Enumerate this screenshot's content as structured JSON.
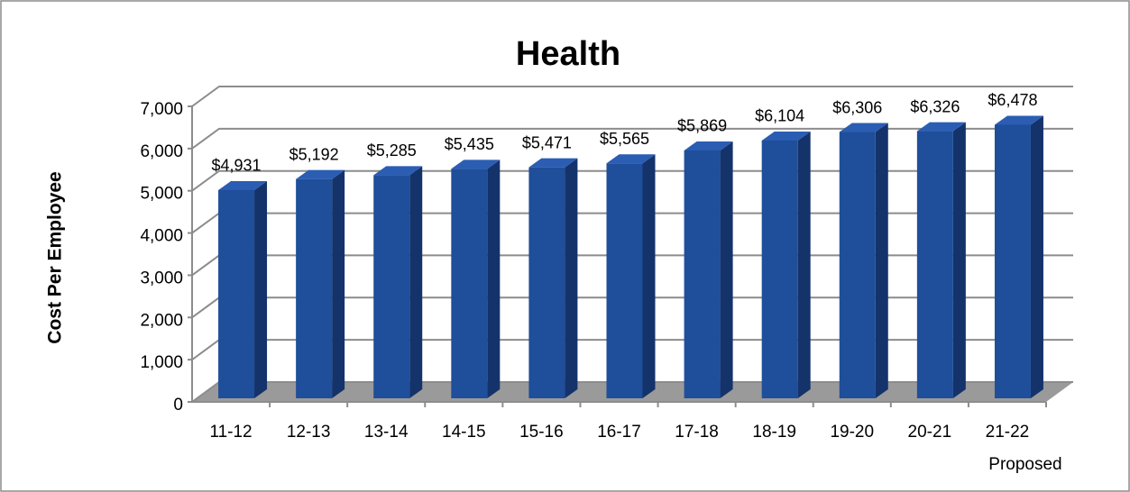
{
  "chart_data": {
    "type": "bar3d",
    "title": "Health",
    "y_label": "Cost  Per Employee",
    "categories": [
      "11-12",
      "12-13",
      "13-14",
      "14-15",
      "15-16",
      "16-17",
      "17-18",
      "18-19",
      "19-20",
      "20-21",
      "21-22\nProposed"
    ],
    "values": [
      4931,
      5192,
      5285,
      5435,
      5471,
      5565,
      5869,
      6104,
      6306,
      6326,
      6478
    ],
    "value_labels": [
      "$4,931",
      "$5,192",
      "$5,285",
      "$5,435",
      "$5,471",
      "$5,565",
      "$5,869",
      "$6,104",
      "$6,306",
      "$6,326",
      "$6,478"
    ],
    "color": "#1f4e9a",
    "ylim": [
      0,
      7000
    ],
    "yticks": [
      0,
      {
        "value": 1000,
        "label": "1,000"
      },
      {
        "value": 2000,
        "label": "2,000"
      },
      {
        "value": 3000,
        "label": "3,000"
      },
      {
        "value": 4000,
        "label": "4,000"
      },
      {
        "value": 5000,
        "label": "5,000"
      },
      {
        "value": 6000,
        "label": "6,000"
      },
      {
        "value": 7000,
        "label": "7,000"
      }
    ],
    "grid": true
  }
}
